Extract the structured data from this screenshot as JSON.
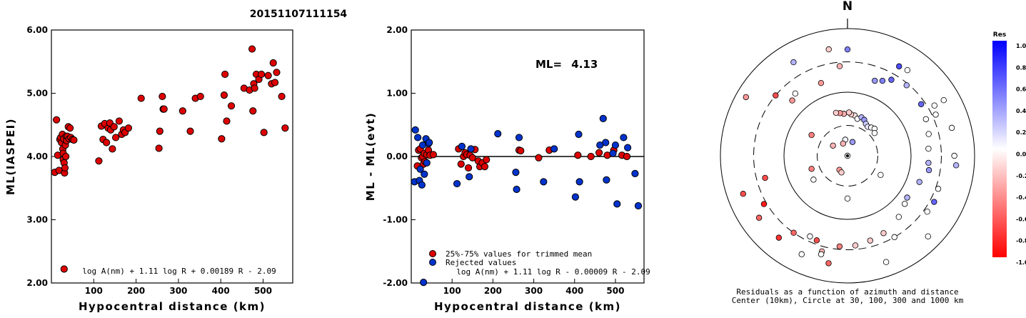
{
  "figure_title": "20151107111154",
  "chart_data": [
    {
      "type": "scatter",
      "id": "ml_vs_distance",
      "xlabel": "Hypocentral distance (km)",
      "ylabel": "ML(IASPEI)",
      "xlim": [
        0,
        570
      ],
      "ylim": [
        2.0,
        6.0
      ],
      "x_ticks": [
        {
          "v": 100,
          "label": "100"
        },
        {
          "v": 200,
          "label": "200"
        },
        {
          "v": 300,
          "label": "300"
        },
        {
          "v": 400,
          "label": "400"
        },
        {
          "v": 500,
          "label": "500"
        }
      ],
      "y_ticks": [
        {
          "v": 2.0,
          "label": "2.00"
        },
        {
          "v": 3.0,
          "label": "3.00"
        },
        {
          "v": 4.0,
          "label": "4.00"
        },
        {
          "v": 5.0,
          "label": "5.00"
        },
        {
          "v": 6.0,
          "label": "6.00"
        }
      ],
      "formula": "log A(nm) + 1.11 log R + 0.00189 R - 2.09",
      "points": [
        [
          8,
          3.75
        ],
        [
          12,
          4.58
        ],
        [
          15,
          4.02
        ],
        [
          18,
          3.78
        ],
        [
          20,
          4.27
        ],
        [
          22,
          4.3
        ],
        [
          24,
          4.22
        ],
        [
          26,
          4.35
        ],
        [
          27,
          4.12
        ],
        [
          28,
          4.05
        ],
        [
          28,
          3.95
        ],
        [
          29,
          4.28
        ],
        [
          30,
          3.9
        ],
        [
          30,
          2.22
        ],
        [
          31,
          3.74
        ],
        [
          32,
          3.82
        ],
        [
          33,
          4.18
        ],
        [
          34,
          4.0
        ],
        [
          35,
          4.32
        ],
        [
          36,
          4.25
        ],
        [
          38,
          4.32
        ],
        [
          40,
          4.47
        ],
        [
          42,
          4.28
        ],
        [
          44,
          4.45
        ],
        [
          46,
          4.3
        ],
        [
          50,
          4.27
        ],
        [
          53,
          4.26
        ],
        [
          112,
          3.93
        ],
        [
          118,
          4.48
        ],
        [
          122,
          4.27
        ],
        [
          126,
          4.52
        ],
        [
          130,
          4.22
        ],
        [
          134,
          4.45
        ],
        [
          138,
          4.53
        ],
        [
          140,
          4.42
        ],
        [
          144,
          4.12
        ],
        [
          148,
          4.47
        ],
        [
          152,
          4.3
        ],
        [
          160,
          4.56
        ],
        [
          166,
          4.35
        ],
        [
          170,
          4.42
        ],
        [
          174,
          4.38
        ],
        [
          182,
          4.45
        ],
        [
          212,
          4.92
        ],
        [
          254,
          4.13
        ],
        [
          256,
          4.4
        ],
        [
          262,
          4.95
        ],
        [
          264,
          4.75
        ],
        [
          266,
          4.75
        ],
        [
          310,
          4.72
        ],
        [
          328,
          4.4
        ],
        [
          340,
          4.92
        ],
        [
          352,
          4.95
        ],
        [
          402,
          4.28
        ],
        [
          408,
          4.97
        ],
        [
          410,
          5.3
        ],
        [
          414,
          4.56
        ],
        [
          425,
          4.8
        ],
        [
          455,
          5.08
        ],
        [
          468,
          5.05
        ],
        [
          474,
          5.7
        ],
        [
          476,
          4.72
        ],
        [
          478,
          5.15
        ],
        [
          480,
          5.08
        ],
        [
          484,
          5.3
        ],
        [
          490,
          5.22
        ],
        [
          496,
          5.3
        ],
        [
          502,
          4.38
        ],
        [
          512,
          5.28
        ],
        [
          520,
          5.15
        ],
        [
          524,
          5.48
        ],
        [
          528,
          5.17
        ],
        [
          532,
          5.33
        ],
        [
          544,
          4.95
        ],
        [
          552,
          4.45
        ]
      ]
    },
    {
      "type": "scatter",
      "id": "residual_vs_distance",
      "xlabel": "Hypocentral distance (km)",
      "ylabel": "ML - ML(evt)",
      "xlim": [
        0,
        570
      ],
      "ylim": [
        -2.0,
        2.0
      ],
      "x_ticks": [
        {
          "v": 100,
          "label": "100"
        },
        {
          "v": 200,
          "label": "200"
        },
        {
          "v": 300,
          "label": "300"
        },
        {
          "v": 400,
          "label": "400"
        },
        {
          "v": 500,
          "label": "500"
        }
      ],
      "y_ticks": [
        {
          "v": -2.0,
          "label": "-2.00"
        },
        {
          "v": -1.0,
          "label": "-1.00"
        },
        {
          "v": 0.0,
          "label": "0.00"
        },
        {
          "v": 1.0,
          "label": "1.00"
        },
        {
          "v": 2.0,
          "label": "2.00"
        }
      ],
      "ml_label": "ML=",
      "ml_value": "4.13",
      "formula": "log A(nm) + 1.11 log R - 0.00009 R - 2.09",
      "legend": [
        {
          "label": "25%-75% values for trimmed mean",
          "color": "#dd0000"
        },
        {
          "label": "Rejected values",
          "color": "#0033cc"
        }
      ],
      "series": [
        {
          "role": "trimmed",
          "color": "#dd0000",
          "points": [
            [
              15,
              -0.15
            ],
            [
              18,
              0.1
            ],
            [
              22,
              0.12
            ],
            [
              25,
              -0.02
            ],
            [
              28,
              0.0
            ],
            [
              30,
              -0.12
            ],
            [
              32,
              0.05
            ],
            [
              34,
              -0.08
            ],
            [
              38,
              0.03
            ],
            [
              42,
              0.1
            ],
            [
              46,
              0.02
            ],
            [
              54,
              0.03
            ],
            [
              116,
              0.12
            ],
            [
              122,
              -0.12
            ],
            [
              128,
              0.0
            ],
            [
              132,
              0.06
            ],
            [
              136,
              0.03
            ],
            [
              140,
              -0.18
            ],
            [
              144,
              0.02
            ],
            [
              150,
              -0.02
            ],
            [
              156,
              0.11
            ],
            [
              164,
              -0.07
            ],
            [
              168,
              -0.16
            ],
            [
              174,
              -0.1
            ],
            [
              180,
              -0.16
            ],
            [
              184,
              -0.05
            ],
            [
              264,
              0.1
            ],
            [
              268,
              0.09
            ],
            [
              312,
              -0.02
            ],
            [
              338,
              0.1
            ],
            [
              408,
              0.02
            ],
            [
              440,
              0.0
            ],
            [
              460,
              0.06
            ],
            [
              480,
              0.02
            ],
            [
              496,
              0.1
            ],
            [
              516,
              0.02
            ],
            [
              528,
              0.0
            ]
          ]
        },
        {
          "role": "rejected",
          "color": "#0033cc",
          "points": [
            [
              8,
              -0.4
            ],
            [
              10,
              0.42
            ],
            [
              16,
              0.3
            ],
            [
              20,
              -0.38
            ],
            [
              22,
              -0.2
            ],
            [
              26,
              -0.45
            ],
            [
              28,
              0.18
            ],
            [
              32,
              -0.28
            ],
            [
              36,
              0.28
            ],
            [
              38,
              -0.1
            ],
            [
              42,
              0.2
            ],
            [
              44,
              0.22
            ],
            [
              30,
              -1.99
            ],
            [
              112,
              -0.43
            ],
            [
              124,
              0.16
            ],
            [
              142,
              -0.32
            ],
            [
              146,
              0.12
            ],
            [
              212,
              0.36
            ],
            [
              256,
              -0.25
            ],
            [
              258,
              -0.52
            ],
            [
              264,
              0.3
            ],
            [
              324,
              -0.4
            ],
            [
              350,
              0.12
            ],
            [
              402,
              -0.64
            ],
            [
              410,
              0.35
            ],
            [
              412,
              -0.4
            ],
            [
              462,
              0.18
            ],
            [
              470,
              0.6
            ],
            [
              476,
              0.22
            ],
            [
              478,
              -0.37
            ],
            [
              494,
              0.05
            ],
            [
              500,
              0.18
            ],
            [
              504,
              -0.75
            ],
            [
              520,
              0.3
            ],
            [
              530,
              0.14
            ],
            [
              548,
              -0.27
            ],
            [
              556,
              -0.78
            ]
          ]
        }
      ]
    },
    {
      "type": "polar-scatter",
      "id": "azimuth_distance_residuals",
      "north_label": "N",
      "caption_line1": "Residuals as a function of azimuth and distance",
      "caption_line2": "Center (10km), Circle at 30, 100, 300 and 1000 km",
      "rings_km": [
        30,
        100,
        300,
        1000
      ],
      "points": [
        [
          0,
          10,
          0.0
        ],
        [
          352,
          18,
          0.05
        ],
        [
          340,
          16,
          -0.3
        ],
        [
          20,
          17,
          0.4
        ],
        [
          210,
          18,
          -0.4
        ],
        [
          200,
          19,
          -0.2
        ],
        [
          305,
          19,
          -0.3
        ],
        [
          10,
          44,
          -0.1
        ],
        [
          5,
          45,
          -0.2
        ],
        [
          2,
          48,
          -0.2
        ],
        [
          355,
          46,
          -0.3
        ],
        [
          350,
          48,
          -0.4
        ],
        [
          345,
          50,
          -0.2
        ],
        [
          15,
          40,
          0.0
        ],
        [
          20,
          44,
          0.3
        ],
        [
          25,
          42,
          0.4
        ],
        [
          30,
          38,
          0.2
        ],
        [
          35,
          36,
          0.1
        ],
        [
          40,
          38,
          0.0
        ],
        [
          45,
          40,
          0.0
        ],
        [
          50,
          36,
          0.0
        ],
        [
          300,
          45,
          -0.5
        ],
        [
          250,
          40,
          -0.5
        ],
        [
          235,
          45,
          0.0
        ],
        [
          180,
          47,
          0.0
        ],
        [
          120,
          40,
          0.0
        ],
        [
          340,
          165,
          -0.4
        ],
        [
          315,
          170,
          -0.4
        ],
        [
          320,
          190,
          0.0
        ],
        [
          355,
          260,
          -0.3
        ],
        [
          20,
          180,
          0.4
        ],
        [
          25,
          200,
          0.5
        ],
        [
          30,
          240,
          0.6
        ],
        [
          40,
          280,
          0.3
        ],
        [
          55,
          260,
          0.6
        ],
        [
          65,
          230,
          0.0
        ],
        [
          75,
          210,
          0.0
        ],
        [
          85,
          190,
          0.0
        ],
        [
          95,
          190,
          0.3
        ],
        [
          100,
          200,
          0.4
        ],
        [
          110,
          160,
          0.3
        ],
        [
          125,
          140,
          0.3
        ],
        [
          130,
          150,
          0.0
        ],
        [
          140,
          180,
          0.0
        ],
        [
          155,
          220,
          -0.2
        ],
        [
          165,
          240,
          -0.2
        ],
        [
          175,
          260,
          -0.2
        ],
        [
          185,
          270,
          -0.5
        ],
        [
          200,
          260,
          -0.7
        ],
        [
          205,
          250,
          0.0
        ],
        [
          215,
          300,
          -0.6
        ],
        [
          255,
          220,
          -0.7
        ],
        [
          240,
          330,
          -0.9
        ],
        [
          310,
          300,
          -0.7
        ],
        [
          60,
          380,
          0.0
        ],
        [
          65,
          340,
          0.0
        ],
        [
          110,
          330,
          0.0
        ],
        [
          118,
          350,
          0.6
        ],
        [
          125,
          340,
          0.0
        ],
        [
          150,
          300,
          0.0
        ],
        [
          195,
          360,
          -0.3
        ],
        [
          0,
          470,
          0.5
        ],
        [
          350,
          500,
          -0.2
        ],
        [
          330,
          500,
          0.3
        ],
        [
          195,
          400,
          0.0
        ],
        [
          205,
          510,
          0.0
        ],
        [
          220,
          480,
          -0.8
        ],
        [
          235,
          500,
          -0.6
        ],
        [
          250,
          560,
          -0.7
        ],
        [
          300,
          700,
          -0.4
        ],
        [
          30,
          420,
          0.7
        ],
        [
          35,
          440,
          0.0
        ],
        [
          60,
          560,
          0.0
        ],
        [
          75,
          500,
          0.0
        ],
        [
          90,
          480,
          0.0
        ],
        [
          95,
          520,
          0.3
        ],
        [
          135,
          620,
          0.0
        ],
        [
          160,
          600,
          0.0
        ],
        [
          190,
          520,
          -0.6
        ]
      ],
      "colorbar": {
        "title": "Res",
        "ticks": [
          {
            "v": 1.0,
            "label": "1.0"
          },
          {
            "v": 0.8,
            "label": "0.8"
          },
          {
            "v": 0.6,
            "label": "0.6"
          },
          {
            "v": 0.4,
            "label": "0.4"
          },
          {
            "v": 0.2,
            "label": "0.2"
          },
          {
            "v": 0.0,
            "label": "0.0"
          },
          {
            "v": -0.2,
            "label": "-0.2"
          },
          {
            "v": -0.4,
            "label": "-0.4"
          },
          {
            "v": -0.6,
            "label": "-0.6"
          },
          {
            "v": -0.8,
            "label": "-0.8"
          },
          {
            "v": -1.0,
            "label": "-1.0"
          }
        ]
      }
    }
  ]
}
